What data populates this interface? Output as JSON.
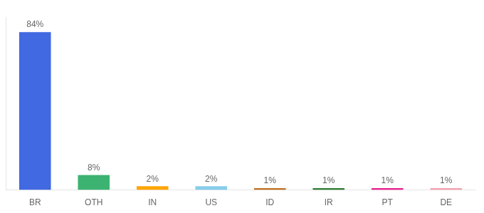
{
  "chart_data": {
    "type": "bar",
    "categories": [
      "BR",
      "OTH",
      "IN",
      "US",
      "ID",
      "IR",
      "PT",
      "DE"
    ],
    "values": [
      84,
      8,
      2,
      2,
      1,
      1,
      1,
      1
    ],
    "value_labels": [
      "84%",
      "8%",
      "2%",
      "2%",
      "1%",
      "1%",
      "1%",
      "1%"
    ],
    "colors": [
      "#4169e1",
      "#3cb371",
      "#ffa500",
      "#87ceeb",
      "#c07020",
      "#2e7d32",
      "#e91e8c",
      "#f4a0b0"
    ],
    "ylim": [
      0,
      92
    ],
    "grid": false,
    "data_labels": true,
    "tick_labels": "x"
  }
}
